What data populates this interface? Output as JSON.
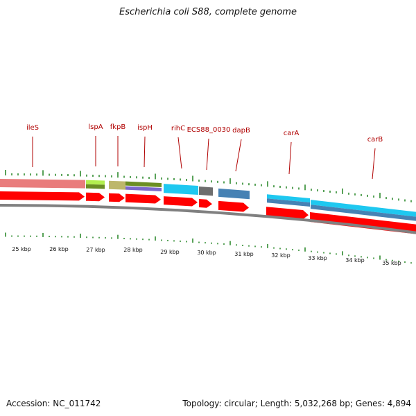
{
  "title": "Escherichia coli S88, complete genome",
  "footer": {
    "accession": "Accession: NC_011742",
    "topology": "Topology: circular; Length: 5,032,268 bp; Genes: 4,894"
  },
  "colors": {
    "cds": "#ff0000",
    "tick": "#2e8b2e",
    "backbone": "#808080",
    "label": "#b00000"
  },
  "genes": [
    "ileS",
    "lspA",
    "fkpB",
    "ispH",
    "rihC",
    "ECS88_0030",
    "dapB",
    "carA",
    "carB"
  ],
  "scale": [
    "25 kbp",
    "26 kbp",
    "27 kbp",
    "28 kbp",
    "29 kbp",
    "30 kbp",
    "31 kbp",
    "32 kbp",
    "33 kbp",
    "34 kbp",
    "35 kbp"
  ]
}
